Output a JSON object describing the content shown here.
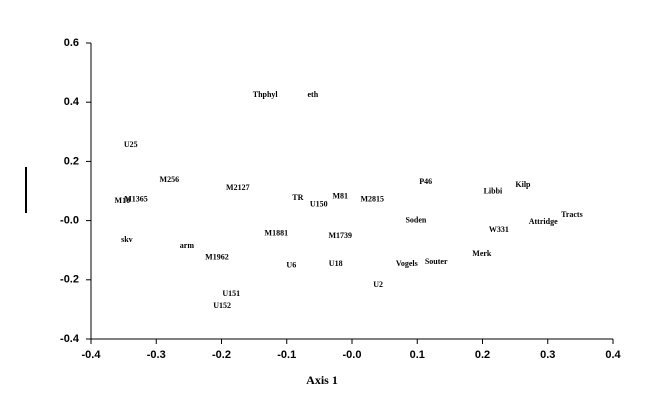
{
  "chart_data": {
    "type": "scatter",
    "x_label": "Axis 1",
    "xlim": [
      -0.4,
      0.4
    ],
    "xticks": [
      -0.4,
      -0.3,
      -0.2,
      -0.1,
      {
        "value": 0,
        "label": "-0.0"
      },
      0.1,
      0.2,
      0.3,
      0.4
    ],
    "ylim": [
      -0.4,
      0.6
    ],
    "yticks": [
      -0.4,
      -0.2,
      {
        "value": 0,
        "label": "-0.0"
      },
      0.2,
      0.4,
      0.6
    ],
    "labels": [
      "Thphyl",
      "eth",
      "U25",
      "M256",
      "M2127",
      "M10",
      "M1365",
      "TR",
      "U150",
      "M81",
      "M2815",
      "P46",
      "Libbi",
      "Kilp",
      "Soden",
      "Attridge",
      "Tracts",
      "W331",
      "skv",
      "arm",
      "M1881",
      "M1739",
      "M1962",
      "U6",
      "U18",
      "Vogels",
      "Souter",
      "Merk",
      "U2",
      "U151",
      "U152"
    ],
    "x": [
      -0.133,
      -0.06,
      -0.339,
      -0.28,
      -0.175,
      -0.352,
      -0.331,
      -0.083,
      -0.051,
      -0.018,
      0.031,
      0.113,
      0.216,
      0.262,
      0.098,
      0.293,
      0.337,
      0.225,
      -0.345,
      -0.253,
      -0.116,
      -0.018,
      -0.207,
      -0.093,
      -0.025,
      0.084,
      0.129,
      0.199,
      0.04,
      -0.185,
      -0.199
    ],
    "y": [
      0.424,
      0.424,
      0.255,
      0.137,
      0.11,
      0.066,
      0.07,
      0.076,
      0.053,
      0.08,
      0.07,
      0.13,
      0.097,
      0.12,
      -0.001,
      -0.005,
      0.019,
      -0.032,
      -0.066,
      -0.086,
      -0.045,
      -0.052,
      -0.126,
      -0.153,
      -0.147,
      -0.147,
      -0.14,
      -0.113,
      -0.218,
      -0.248,
      -0.289
    ]
  }
}
